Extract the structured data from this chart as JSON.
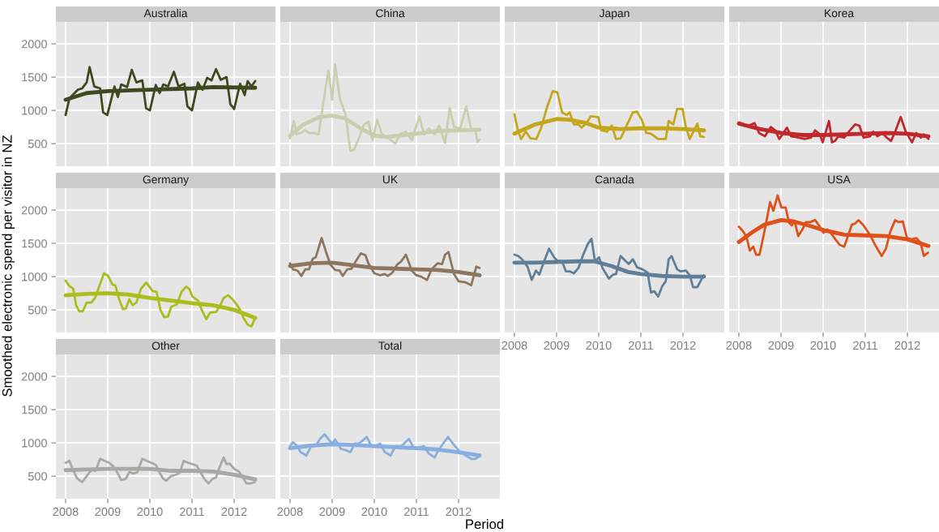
{
  "chart_data": [
    {
      "type": "line",
      "title": "Australia",
      "xlim": [
        2007.77,
        2012.98
      ],
      "ylim": [
        160,
        2330
      ],
      "xticks": [
        2008,
        2009,
        2010,
        2011,
        2012
      ],
      "yticks": [
        500,
        1000,
        1500,
        2000
      ],
      "grid": true,
      "tick_labels": "y",
      "series": [
        {
          "color": "#3d4a1f",
          "x": [
            2008.0,
            2008.09,
            2008.29,
            2008.39,
            2008.5,
            2008.57,
            2008.68,
            2008.82,
            2008.89,
            2008.99,
            2009.16,
            2009.24,
            2009.32,
            2009.46,
            2009.57,
            2009.68,
            2009.82,
            2009.91,
            2010.0,
            2010.14,
            2010.23,
            2010.32,
            2010.43,
            2010.57,
            2010.68,
            2010.82,
            2010.89,
            2011.0,
            2011.14,
            2011.25,
            2011.36,
            2011.46,
            2011.57,
            2011.68,
            2011.82,
            2011.91,
            2012.0,
            2012.14,
            2012.25,
            2012.32,
            2012.41,
            2012.5
          ],
          "values": [
            930,
            1180,
            1310,
            1330,
            1420,
            1650,
            1360,
            1330,
            970,
            930,
            1360,
            1200,
            1390,
            1350,
            1610,
            1420,
            1450,
            1030,
            1000,
            1380,
            1260,
            1390,
            1360,
            1580,
            1360,
            1400,
            1060,
            1000,
            1420,
            1310,
            1490,
            1450,
            1620,
            1460,
            1500,
            1090,
            1020,
            1400,
            1230,
            1440,
            1360,
            1440
          ]
        },
        {
          "color": "#3d4a1f",
          "x": [
            2008.0,
            2008.5,
            2009.0,
            2010.0,
            2011.0,
            2011.5,
            2012.5
          ],
          "values": [
            1160,
            1260,
            1290,
            1310,
            1330,
            1350,
            1340
          ]
        }
      ]
    },
    {
      "type": "line",
      "title": "China",
      "xlim": [
        2007.77,
        2012.98
      ],
      "ylim": [
        160,
        2330
      ],
      "xticks": [
        2008,
        2009,
        2010,
        2011,
        2012
      ],
      "yticks": [
        500,
        1000,
        1500,
        2000
      ],
      "grid": true,
      "tick_labels": false,
      "series": [
        {
          "color": "#c8cfae",
          "x": [
            2008.0,
            2008.09,
            2008.16,
            2008.25,
            2008.36,
            2008.46,
            2008.57,
            2008.68,
            2008.79,
            2008.91,
            2009.0,
            2009.07,
            2009.18,
            2009.32,
            2009.43,
            2009.52,
            2009.64,
            2009.75,
            2009.86,
            2009.96,
            2010.07,
            2010.18,
            2010.32,
            2010.5,
            2010.61,
            2010.75,
            2010.89,
            2011.07,
            2011.18,
            2011.29,
            2011.43,
            2011.54,
            2011.68,
            2011.79,
            2011.89,
            2012.04,
            2012.18,
            2012.3,
            2012.4,
            2012.45,
            2012.5
          ],
          "values": [
            580,
            840,
            640,
            660,
            700,
            660,
            660,
            640,
            1110,
            1600,
            1160,
            1690,
            1180,
            930,
            390,
            410,
            590,
            780,
            830,
            550,
            860,
            640,
            590,
            500,
            640,
            680,
            550,
            910,
            640,
            730,
            640,
            770,
            510,
            1040,
            750,
            730,
            1060,
            720,
            700,
            520,
            560
          ]
        },
        {
          "color": "#c8cfae",
          "x": [
            2008.0,
            2008.3,
            2008.7,
            2009.0,
            2009.3,
            2009.7,
            2010.0,
            2010.3,
            2011.0,
            2011.5,
            2012.0,
            2012.5
          ],
          "values": [
            620,
            780,
            900,
            920,
            880,
            720,
            620,
            600,
            650,
            690,
            700,
            710
          ]
        }
      ]
    },
    {
      "type": "line",
      "title": "Japan",
      "xlim": [
        2007.77,
        2012.98
      ],
      "ylim": [
        160,
        2330
      ],
      "xticks": [
        2008,
        2009,
        2010,
        2011,
        2012
      ],
      "yticks": [
        500,
        1000,
        1500,
        2000
      ],
      "grid": true,
      "tick_labels": false,
      "series": [
        {
          "color": "#c3a61b",
          "x": [
            2008.0,
            2008.09,
            2008.16,
            2008.27,
            2008.38,
            2008.52,
            2008.63,
            2008.77,
            2008.91,
            2009.02,
            2009.13,
            2009.24,
            2009.31,
            2009.41,
            2009.52,
            2009.59,
            2009.7,
            2009.81,
            2009.99,
            2010.06,
            2010.2,
            2010.31,
            2010.41,
            2010.52,
            2010.66,
            2010.81,
            2010.91,
            2011.02,
            2011.13,
            2011.24,
            2011.41,
            2011.59,
            2011.66,
            2011.77,
            2011.86,
            2011.99,
            2012.06,
            2012.16,
            2012.34,
            2012.41,
            2012.49
          ],
          "values": [
            940,
            680,
            570,
            680,
            580,
            570,
            730,
            1040,
            1290,
            1270,
            970,
            930,
            970,
            790,
            790,
            740,
            800,
            910,
            900,
            700,
            680,
            770,
            570,
            580,
            770,
            970,
            980,
            860,
            660,
            650,
            570,
            570,
            840,
            790,
            1020,
            1020,
            770,
            570,
            800,
            610,
            600
          ]
        },
        {
          "color": "#c3a61b",
          "x": [
            2008.0,
            2008.5,
            2009.0,
            2009.3,
            2009.7,
            2010.0,
            2010.5,
            2011.0,
            2011.5,
            2012.0,
            2012.5
          ],
          "values": [
            650,
            790,
            870,
            860,
            810,
            740,
            720,
            730,
            730,
            720,
            700
          ]
        }
      ]
    },
    {
      "type": "line",
      "title": "Korea",
      "xlim": [
        2007.77,
        2012.98
      ],
      "ylim": [
        160,
        2330
      ],
      "xticks": [
        2008,
        2009,
        2010,
        2011,
        2012
      ],
      "yticks": [
        500,
        1000,
        1500,
        2000
      ],
      "grid": true,
      "tick_labels": false,
      "series": [
        {
          "color": "#c0282b",
          "x": [
            2008.0,
            2008.12,
            2008.23,
            2008.37,
            2008.48,
            2008.62,
            2008.76,
            2008.86,
            2008.96,
            2009.14,
            2009.24,
            2009.42,
            2009.56,
            2009.71,
            2009.81,
            2009.92,
            2009.99,
            2010.14,
            2010.21,
            2010.28,
            2010.36,
            2010.5,
            2010.61,
            2010.76,
            2010.86,
            2010.96,
            2011.11,
            2011.19,
            2011.29,
            2011.4,
            2011.51,
            2011.61,
            2011.71,
            2011.84,
            2011.96,
            2012.11,
            2012.21,
            2012.32,
            2012.39,
            2012.5
          ],
          "values": [
            820,
            790,
            770,
            810,
            660,
            610,
            750,
            700,
            570,
            740,
            610,
            590,
            570,
            590,
            700,
            640,
            520,
            840,
            520,
            540,
            610,
            590,
            680,
            790,
            770,
            590,
            610,
            680,
            610,
            660,
            590,
            540,
            680,
            900,
            680,
            520,
            660,
            590,
            640,
            570
          ]
        },
        {
          "color": "#c0282b",
          "x": [
            2008.0,
            2008.5,
            2009.0,
            2009.5,
            2010.0,
            2011.0,
            2011.5,
            2012.0,
            2012.5
          ],
          "values": [
            800,
            720,
            660,
            630,
            630,
            650,
            660,
            650,
            610
          ]
        }
      ]
    },
    {
      "type": "line",
      "title": "Germany",
      "xlim": [
        2007.77,
        2012.98
      ],
      "ylim": [
        160,
        2330
      ],
      "xticks": [
        2008,
        2009,
        2010,
        2011,
        2012
      ],
      "yticks": [
        500,
        1000,
        1500,
        2000
      ],
      "grid": true,
      "tick_labels": "y",
      "series": [
        {
          "color": "#a9bd1d",
          "x": [
            2008.0,
            2008.09,
            2008.18,
            2008.25,
            2008.32,
            2008.41,
            2008.5,
            2008.61,
            2008.7,
            2008.79,
            2008.91,
            2009.01,
            2009.11,
            2009.18,
            2009.27,
            2009.36,
            2009.43,
            2009.51,
            2009.59,
            2009.68,
            2009.79,
            2009.91,
            2010.0,
            2010.07,
            2010.16,
            2010.25,
            2010.34,
            2010.43,
            2010.51,
            2010.64,
            2010.75,
            2010.86,
            2010.94,
            2011.01,
            2011.14,
            2011.23,
            2011.34,
            2011.43,
            2011.57,
            2011.66,
            2011.75,
            2011.86,
            2011.96,
            2012.07,
            2012.14,
            2012.23,
            2012.32,
            2012.41,
            2012.49
          ],
          "values": [
            940,
            860,
            820,
            570,
            480,
            480,
            610,
            610,
            680,
            840,
            1050,
            1010,
            880,
            870,
            660,
            510,
            520,
            660,
            570,
            610,
            820,
            910,
            840,
            780,
            770,
            500,
            390,
            400,
            550,
            580,
            770,
            850,
            810,
            700,
            640,
            500,
            360,
            460,
            470,
            550,
            680,
            720,
            660,
            570,
            500,
            370,
            280,
            250,
            370
          ]
        },
        {
          "color": "#a9bd1d",
          "x": [
            2008.0,
            2008.5,
            2009.0,
            2009.5,
            2010.0,
            2010.5,
            2011.0,
            2011.5,
            2012.0,
            2012.5
          ],
          "values": [
            720,
            740,
            750,
            730,
            680,
            640,
            600,
            570,
            500,
            380
          ]
        }
      ]
    },
    {
      "type": "line",
      "title": "UK",
      "xlim": [
        2007.77,
        2012.98
      ],
      "ylim": [
        160,
        2330
      ],
      "xticks": [
        2008,
        2009,
        2010,
        2011,
        2012
      ],
      "yticks": [
        500,
        1000,
        1500,
        2000
      ],
      "grid": true,
      "tick_labels": false,
      "series": [
        {
          "color": "#8c7660",
          "x": [
            2008.0,
            2008.07,
            2008.18,
            2008.27,
            2008.36,
            2008.45,
            2008.54,
            2008.61,
            2008.75,
            2008.86,
            2008.96,
            2009.07,
            2009.18,
            2009.25,
            2009.36,
            2009.46,
            2009.57,
            2009.68,
            2009.79,
            2009.86,
            2010.0,
            2010.14,
            2010.25,
            2010.32,
            2010.43,
            2010.54,
            2010.64,
            2010.75,
            2010.89,
            2011.0,
            2011.11,
            2011.25,
            2011.36,
            2011.5,
            2011.61,
            2011.68,
            2011.76,
            2011.89,
            2012.0,
            2012.18,
            2012.3,
            2012.42,
            2012.5
          ],
          "values": [
            1200,
            1110,
            1090,
            1010,
            1110,
            1110,
            1270,
            1290,
            1580,
            1360,
            1180,
            1100,
            1090,
            1010,
            1110,
            1120,
            1240,
            1350,
            1320,
            1200,
            1050,
            1020,
            1040,
            1010,
            1060,
            1180,
            1230,
            1330,
            1090,
            1020,
            1000,
            950,
            1110,
            1200,
            1190,
            1330,
            1370,
            1040,
            930,
            910,
            870,
            1150,
            1130
          ]
        },
        {
          "color": "#8c7660",
          "x": [
            2008.0,
            2008.5,
            2009.0,
            2009.5,
            2010.0,
            2011.0,
            2011.5,
            2012.0,
            2012.5
          ],
          "values": [
            1160,
            1200,
            1210,
            1170,
            1130,
            1110,
            1100,
            1070,
            1020
          ]
        }
      ]
    },
    {
      "type": "line",
      "title": "Canada",
      "xlim": [
        2007.77,
        2012.98
      ],
      "ylim": [
        160,
        2330
      ],
      "xticks": [
        2008,
        2009,
        2010,
        2011,
        2012
      ],
      "yticks": [
        500,
        1000,
        1500,
        2000
      ],
      "grid": true,
      "tick_labels": "x",
      "series": [
        {
          "color": "#5f7f99",
          "x": [
            2008.0,
            2008.09,
            2008.18,
            2008.31,
            2008.41,
            2008.51,
            2008.59,
            2008.7,
            2008.82,
            2008.94,
            2009.02,
            2009.13,
            2009.22,
            2009.31,
            2009.41,
            2009.52,
            2009.62,
            2009.74,
            2009.83,
            2009.91,
            2010.01,
            2010.09,
            2010.24,
            2010.34,
            2010.41,
            2010.52,
            2010.63,
            2010.71,
            2010.81,
            2010.91,
            2011.04,
            2011.16,
            2011.24,
            2011.32,
            2011.41,
            2011.51,
            2011.59,
            2011.66,
            2011.73,
            2011.86,
            2011.94,
            2012.07,
            2012.16,
            2012.24,
            2012.34,
            2012.49
          ],
          "values": [
            1330,
            1310,
            1260,
            1150,
            950,
            1090,
            1030,
            1220,
            1420,
            1290,
            1240,
            1230,
            1080,
            1080,
            1050,
            1130,
            1310,
            1490,
            1570,
            1230,
            1290,
            1130,
            970,
            1030,
            1040,
            1310,
            1240,
            1190,
            1260,
            1140,
            1110,
            1060,
            760,
            780,
            700,
            860,
            930,
            1260,
            1310,
            1110,
            1080,
            1090,
            1020,
            840,
            840,
            1020
          ]
        },
        {
          "color": "#5f7f99",
          "x": [
            2008.0,
            2008.5,
            2009.0,
            2009.5,
            2009.9,
            2010.3,
            2010.7,
            2011.0,
            2011.5,
            2012.0,
            2012.5
          ],
          "values": [
            1210,
            1210,
            1220,
            1230,
            1230,
            1160,
            1070,
            1040,
            1010,
            1000,
            1000
          ]
        }
      ]
    },
    {
      "type": "line",
      "title": "USA",
      "xlim": [
        2007.77,
        2012.98
      ],
      "ylim": [
        160,
        2330
      ],
      "xticks": [
        2008,
        2009,
        2010,
        2011,
        2012
      ],
      "yticks": [
        500,
        1000,
        1500,
        2000
      ],
      "grid": true,
      "tick_labels": "x",
      "series": [
        {
          "color": "#e0501b",
          "x": [
            2008.0,
            2008.09,
            2008.18,
            2008.26,
            2008.34,
            2008.41,
            2008.49,
            2008.59,
            2008.66,
            2008.74,
            2008.82,
            2008.92,
            2009.01,
            2009.11,
            2009.19,
            2009.26,
            2009.32,
            2009.41,
            2009.51,
            2009.59,
            2009.69,
            2009.81,
            2009.91,
            2010.01,
            2010.1,
            2010.19,
            2010.29,
            2010.39,
            2010.5,
            2010.61,
            2010.68,
            2010.76,
            2010.84,
            2010.96,
            2011.11,
            2011.24,
            2011.39,
            2011.49,
            2011.59,
            2011.71,
            2011.79,
            2011.89,
            2011.99,
            2012.1,
            2012.21,
            2012.31,
            2012.39,
            2012.49
          ],
          "values": [
            1750,
            1690,
            1600,
            1390,
            1450,
            1330,
            1330,
            1630,
            1850,
            2120,
            1990,
            2220,
            2040,
            2040,
            1810,
            1770,
            1840,
            1610,
            1710,
            1820,
            1820,
            1850,
            1760,
            1660,
            1710,
            1650,
            1560,
            1480,
            1450,
            1650,
            1780,
            1800,
            1850,
            1770,
            1630,
            1470,
            1310,
            1420,
            1670,
            1850,
            1820,
            1830,
            1580,
            1560,
            1580,
            1510,
            1310,
            1360
          ]
        },
        {
          "color": "#e0501b",
          "x": [
            2008.0,
            2008.3,
            2008.6,
            2009.0,
            2009.3,
            2009.7,
            2010.0,
            2010.5,
            2011.0,
            2011.5,
            2012.0,
            2012.5
          ],
          "values": [
            1520,
            1660,
            1780,
            1850,
            1830,
            1760,
            1700,
            1630,
            1620,
            1610,
            1560,
            1460
          ]
        }
      ]
    },
    {
      "type": "line",
      "title": "Other",
      "ylabel": "Smoothed electronic spend per visitor in NZ",
      "xlim": [
        2007.77,
        2012.98
      ],
      "ylim": [
        160,
        2330
      ],
      "xticks": [
        2008,
        2009,
        2010,
        2011,
        2012
      ],
      "yticks": [
        500,
        1000,
        1500,
        2000
      ],
      "grid": true,
      "series": [
        {
          "color": "#a8a8a4",
          "x": [
            2008.0,
            2008.09,
            2008.18,
            2008.27,
            2008.39,
            2008.5,
            2008.61,
            2008.71,
            2008.82,
            2008.93,
            2009.04,
            2009.14,
            2009.23,
            2009.32,
            2009.43,
            2009.51,
            2009.61,
            2009.7,
            2009.82,
            2009.93,
            2010.04,
            2010.14,
            2010.23,
            2010.32,
            2010.39,
            2010.5,
            2010.61,
            2010.71,
            2010.8,
            2010.91,
            2011.01,
            2011.11,
            2011.21,
            2011.29,
            2011.39,
            2011.49,
            2011.57,
            2011.64,
            2011.75,
            2011.82,
            2011.89,
            2012.0,
            2012.11,
            2012.2,
            2012.29,
            2012.39,
            2012.49
          ],
          "values": [
            700,
            730,
            590,
            470,
            410,
            500,
            590,
            580,
            760,
            730,
            700,
            640,
            550,
            440,
            460,
            560,
            540,
            560,
            760,
            730,
            700,
            670,
            550,
            460,
            430,
            500,
            520,
            550,
            730,
            700,
            680,
            660,
            550,
            460,
            390,
            460,
            480,
            610,
            780,
            680,
            690,
            610,
            570,
            490,
            390,
            390,
            410
          ]
        },
        {
          "color": "#a8a8a4",
          "x": [
            2008.0,
            2008.5,
            2009.0,
            2010.0,
            2010.5,
            2011.0,
            2011.5,
            2012.0,
            2012.5
          ],
          "values": [
            590,
            600,
            610,
            610,
            580,
            580,
            570,
            520,
            450
          ]
        }
      ]
    },
    {
      "type": "line",
      "title": "Total",
      "xlabel": "Period",
      "xlim": [
        2007.77,
        2012.98
      ],
      "ylim": [
        160,
        2330
      ],
      "xticks": [
        2008,
        2009,
        2010,
        2011,
        2012
      ],
      "yticks": [
        500,
        1000,
        1500,
        2000
      ],
      "grid": true,
      "tick_labels": "x",
      "series": [
        {
          "color": "#88aee0",
          "x": [
            2008.0,
            2008.07,
            2008.18,
            2008.25,
            2008.39,
            2008.5,
            2008.61,
            2008.71,
            2008.82,
            2008.93,
            2009.0,
            2009.07,
            2009.21,
            2009.32,
            2009.43,
            2009.54,
            2009.64,
            2009.82,
            2009.93,
            2010.04,
            2010.14,
            2010.25,
            2010.39,
            2010.5,
            2010.64,
            2010.82,
            2010.93,
            2011.07,
            2011.18,
            2011.29,
            2011.43,
            2011.54,
            2011.75,
            2011.89,
            2012.04,
            2012.3,
            2012.4,
            2012.5
          ],
          "values": [
            950,
            1010,
            950,
            860,
            810,
            950,
            950,
            1060,
            1130,
            1040,
            990,
            1050,
            910,
            890,
            860,
            990,
            990,
            1090,
            950,
            960,
            990,
            860,
            810,
            950,
            950,
            1060,
            930,
            930,
            950,
            840,
            780,
            910,
            1090,
            970,
            860,
            760,
            760,
            800
          ]
        },
        {
          "color": "#88aee0",
          "x": [
            2008.0,
            2008.5,
            2009.0,
            2009.5,
            2010.0,
            2011.0,
            2011.5,
            2012.0,
            2012.5
          ],
          "values": [
            920,
            960,
            980,
            970,
            950,
            920,
            900,
            860,
            810
          ]
        }
      ]
    }
  ]
}
